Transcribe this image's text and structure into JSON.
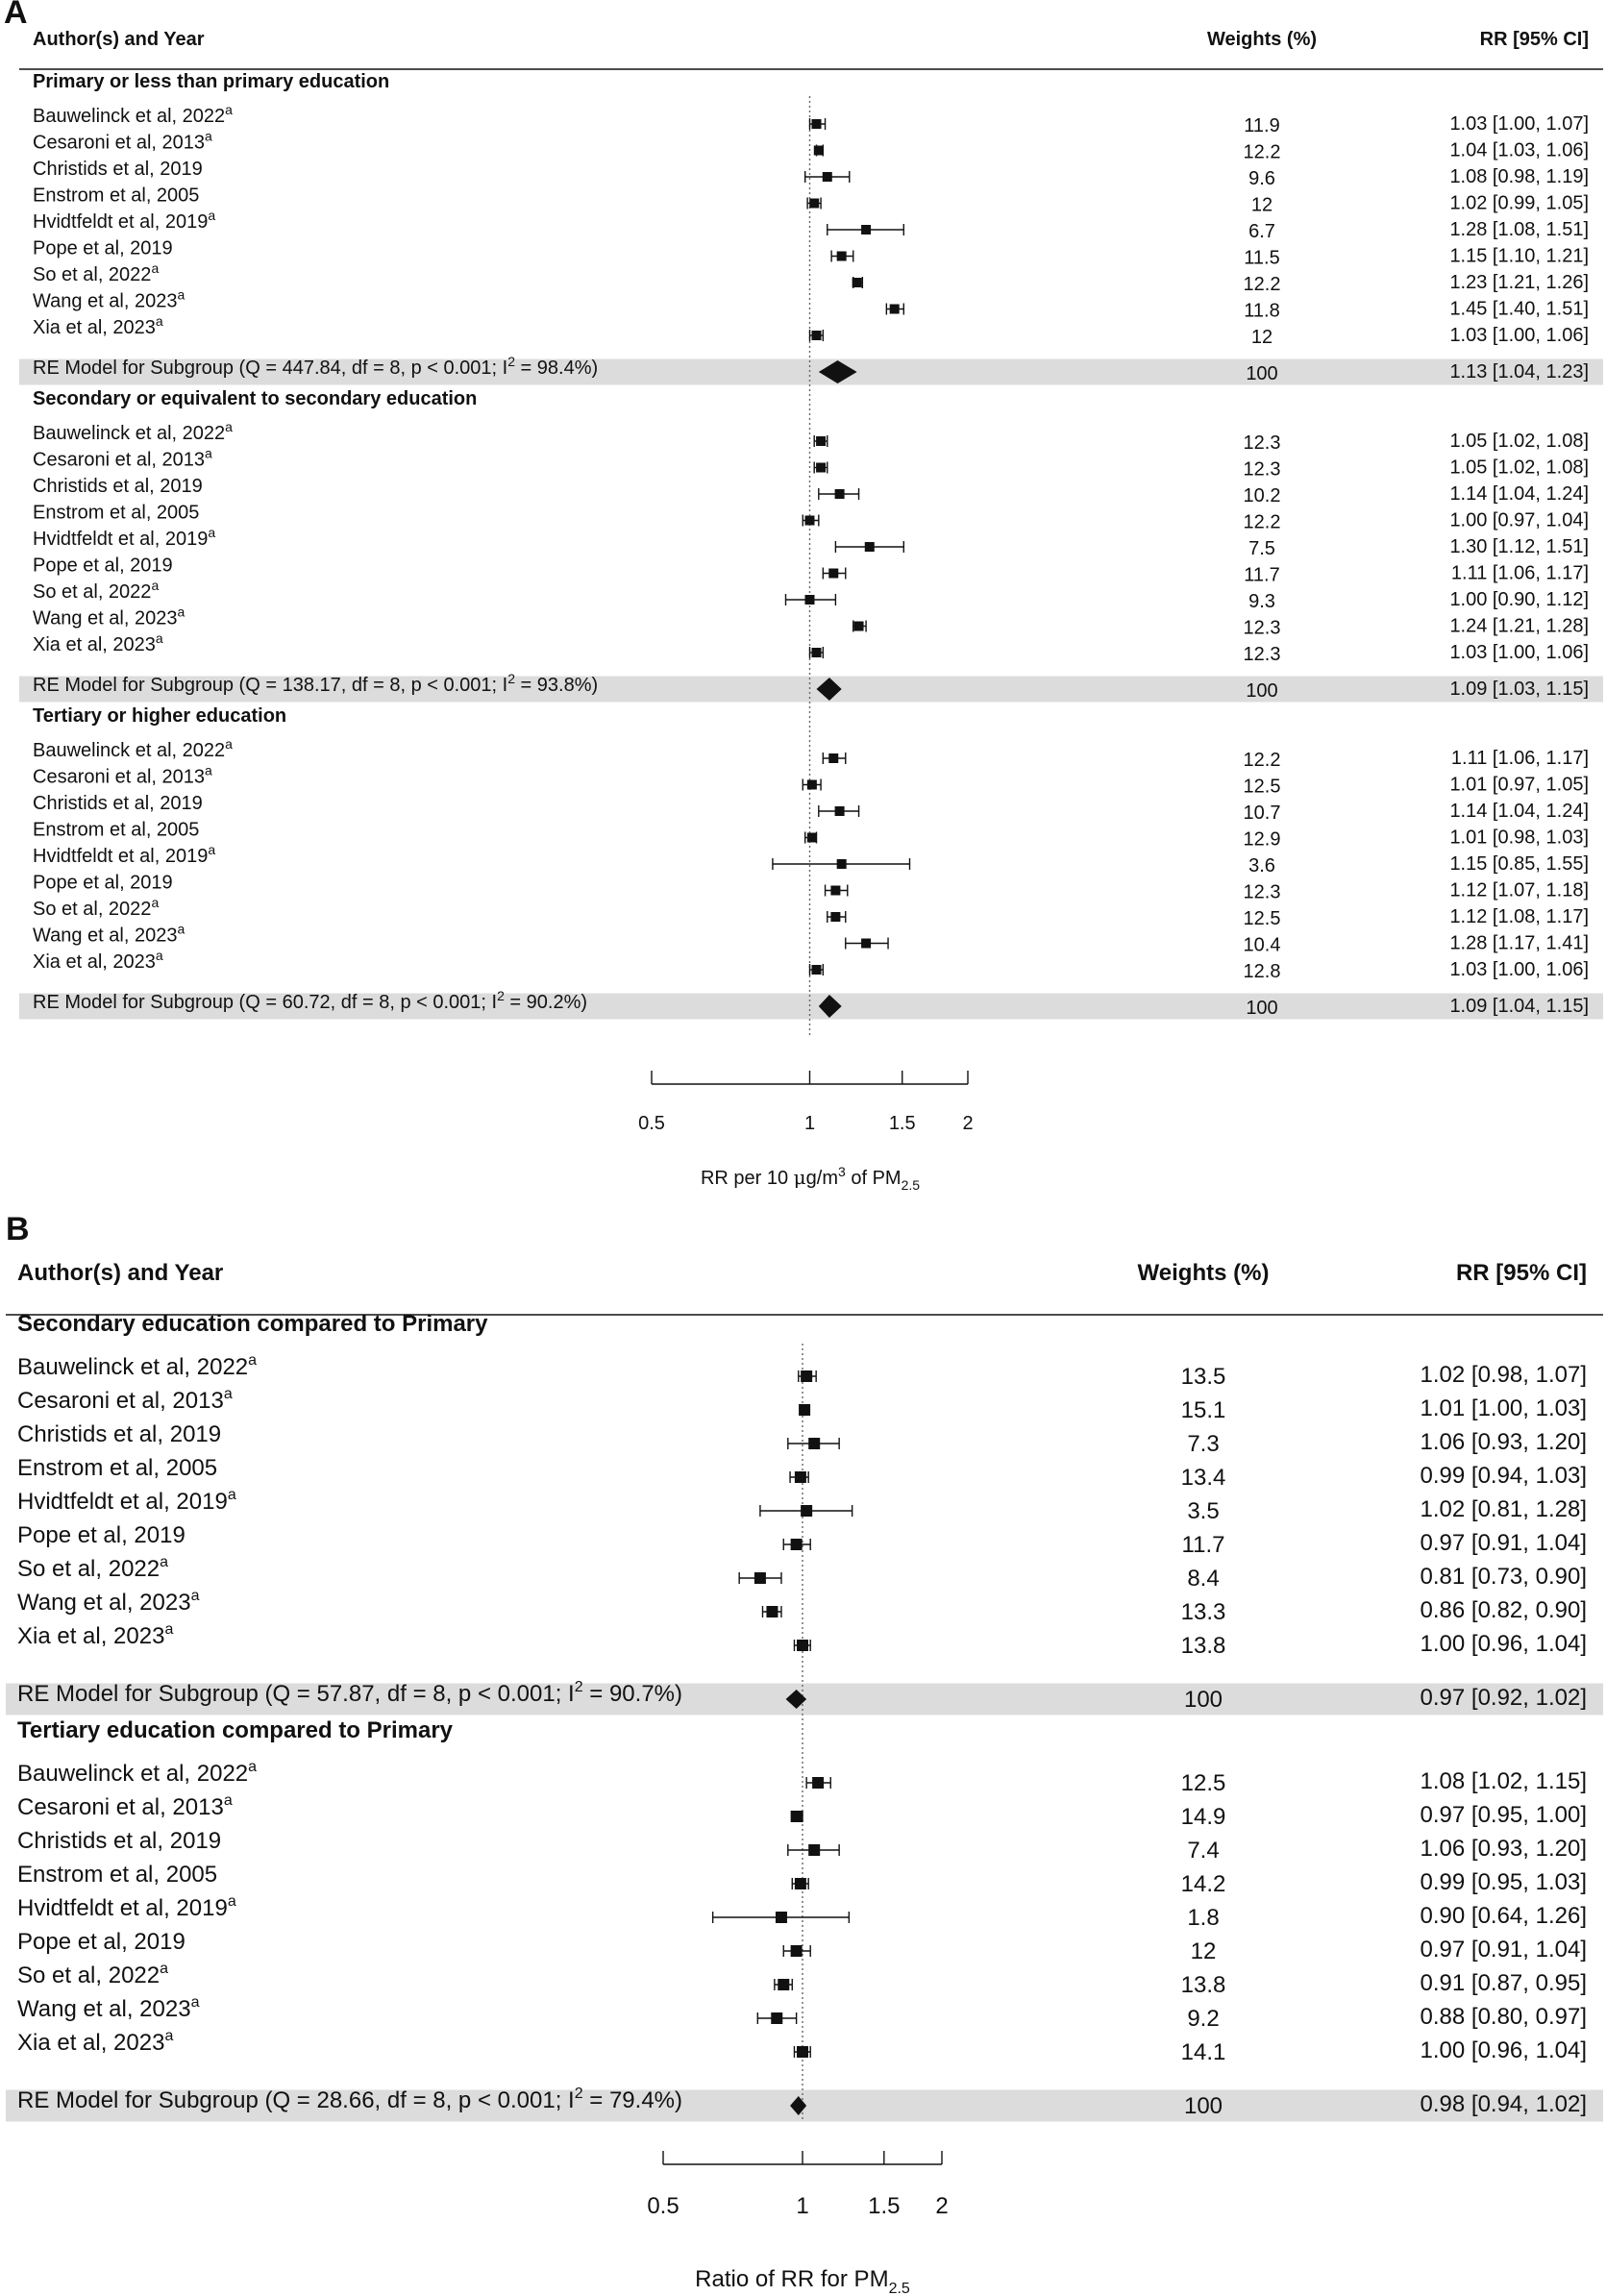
{
  "chart_data": [
    {
      "type": "forest",
      "panel_label": "A",
      "header": {
        "study": "Author(s) and Year",
        "weights": "Weights (%)",
        "ci": "RR [95% CI]"
      },
      "xlabel": {
        "prefix": "RR per 10 ",
        "mu": "μ",
        "mid": "g/m",
        "sup": "3",
        "of": " of PM",
        "sub": "2.5"
      },
      "xscale": "log",
      "xlim": [
        0.5,
        2
      ],
      "xticks": [
        0.5,
        1,
        1.5,
        2
      ],
      "xtick_labels": [
        "0.5",
        "1",
        "1.5",
        "2"
      ],
      "reference_line": 1,
      "subgroups": [
        {
          "title": "Primary or less than primary education",
          "studies": [
            {
              "name": "Bauwelinck et al, 2022",
              "sup": "a",
              "rr": 1.03,
              "lo": 1.0,
              "hi": 1.07,
              "weight": "11.9",
              "ci": "1.03 [1.00, 1.07]"
            },
            {
              "name": "Cesaroni et al, 2013",
              "sup": "a",
              "rr": 1.04,
              "lo": 1.03,
              "hi": 1.06,
              "weight": "12.2",
              "ci": "1.04 [1.03, 1.06]"
            },
            {
              "name": "Christids et al, 2019",
              "sup": "",
              "rr": 1.08,
              "lo": 0.98,
              "hi": 1.19,
              "weight": "9.6",
              "ci": "1.08 [0.98, 1.19]"
            },
            {
              "name": "Enstrom et al, 2005",
              "sup": "",
              "rr": 1.02,
              "lo": 0.99,
              "hi": 1.05,
              "weight": "12",
              "ci": "1.02 [0.99, 1.05]"
            },
            {
              "name": "Hvidtfeldt et al, 2019",
              "sup": "a",
              "rr": 1.28,
              "lo": 1.08,
              "hi": 1.51,
              "weight": "6.7",
              "ci": "1.28 [1.08, 1.51]"
            },
            {
              "name": "Pope et al, 2019",
              "sup": "",
              "rr": 1.15,
              "lo": 1.1,
              "hi": 1.21,
              "weight": "11.5",
              "ci": "1.15 [1.10, 1.21]"
            },
            {
              "name": "So et al, 2022",
              "sup": "a",
              "rr": 1.23,
              "lo": 1.21,
              "hi": 1.26,
              "weight": "12.2",
              "ci": "1.23 [1.21, 1.26]"
            },
            {
              "name": "Wang et al, 2023",
              "sup": "a",
              "rr": 1.45,
              "lo": 1.4,
              "hi": 1.51,
              "weight": "11.8",
              "ci": "1.45 [1.40, 1.51]"
            },
            {
              "name": "Xia et al, 2023",
              "sup": "a",
              "rr": 1.03,
              "lo": 1.0,
              "hi": 1.06,
              "weight": "12",
              "ci": "1.03 [1.00, 1.06]"
            }
          ],
          "model": {
            "pre": "RE Model for Subgroup (Q = 447.84, df = 8, p < 0.001; I",
            "post": " = 98.4%)",
            "rr": 1.13,
            "lo": 1.04,
            "hi": 1.23,
            "weight": "100",
            "ci": "1.13 [1.04, 1.23]"
          }
        },
        {
          "title": "Secondary or equivalent to secondary education",
          "studies": [
            {
              "name": "Bauwelinck et al, 2022",
              "sup": "a",
              "rr": 1.05,
              "lo": 1.02,
              "hi": 1.08,
              "weight": "12.3",
              "ci": "1.05 [1.02, 1.08]"
            },
            {
              "name": "Cesaroni et al, 2013",
              "sup": "a",
              "rr": 1.05,
              "lo": 1.02,
              "hi": 1.08,
              "weight": "12.3",
              "ci": "1.05 [1.02, 1.08]"
            },
            {
              "name": "Christids et al, 2019",
              "sup": "",
              "rr": 1.14,
              "lo": 1.04,
              "hi": 1.24,
              "weight": "10.2",
              "ci": "1.14 [1.04, 1.24]"
            },
            {
              "name": "Enstrom et al, 2005",
              "sup": "",
              "rr": 1.0,
              "lo": 0.97,
              "hi": 1.04,
              "weight": "12.2",
              "ci": "1.00 [0.97, 1.04]"
            },
            {
              "name": "Hvidtfeldt et al, 2019",
              "sup": "a",
              "rr": 1.3,
              "lo": 1.12,
              "hi": 1.51,
              "weight": "7.5",
              "ci": "1.30 [1.12, 1.51]"
            },
            {
              "name": "Pope et al, 2019",
              "sup": "",
              "rr": 1.11,
              "lo": 1.06,
              "hi": 1.17,
              "weight": "11.7",
              "ci": "1.11 [1.06, 1.17]"
            },
            {
              "name": "So et al, 2022",
              "sup": "a",
              "rr": 1.0,
              "lo": 0.9,
              "hi": 1.12,
              "weight": "9.3",
              "ci": "1.00 [0.90, 1.12]"
            },
            {
              "name": "Wang et al, 2023",
              "sup": "a",
              "rr": 1.24,
              "lo": 1.21,
              "hi": 1.28,
              "weight": "12.3",
              "ci": "1.24 [1.21, 1.28]"
            },
            {
              "name": "Xia et al, 2023",
              "sup": "a",
              "rr": 1.03,
              "lo": 1.0,
              "hi": 1.06,
              "weight": "12.3",
              "ci": "1.03 [1.00, 1.06]"
            }
          ],
          "model": {
            "pre": "RE Model for Subgroup (Q = 138.17, df = 8, p < 0.001; I",
            "post": " = 93.8%)",
            "rr": 1.09,
            "lo": 1.03,
            "hi": 1.15,
            "weight": "100",
            "ci": "1.09 [1.03, 1.15]"
          }
        },
        {
          "title": "Tertiary or higher education",
          "studies": [
            {
              "name": "Bauwelinck et al, 2022",
              "sup": "a",
              "rr": 1.11,
              "lo": 1.06,
              "hi": 1.17,
              "weight": "12.2",
              "ci": "1.11 [1.06, 1.17]"
            },
            {
              "name": "Cesaroni et al, 2013",
              "sup": "a",
              "rr": 1.01,
              "lo": 0.97,
              "hi": 1.05,
              "weight": "12.5",
              "ci": "1.01 [0.97, 1.05]"
            },
            {
              "name": "Christids et al, 2019",
              "sup": "",
              "rr": 1.14,
              "lo": 1.04,
              "hi": 1.24,
              "weight": "10.7",
              "ci": "1.14 [1.04, 1.24]"
            },
            {
              "name": "Enstrom et al, 2005",
              "sup": "",
              "rr": 1.01,
              "lo": 0.98,
              "hi": 1.03,
              "weight": "12.9",
              "ci": "1.01 [0.98, 1.03]"
            },
            {
              "name": "Hvidtfeldt et al, 2019",
              "sup": "a",
              "rr": 1.15,
              "lo": 0.85,
              "hi": 1.55,
              "weight": "3.6",
              "ci": "1.15 [0.85, 1.55]"
            },
            {
              "name": "Pope et al, 2019",
              "sup": "",
              "rr": 1.12,
              "lo": 1.07,
              "hi": 1.18,
              "weight": "12.3",
              "ci": "1.12 [1.07, 1.18]"
            },
            {
              "name": "So et al, 2022",
              "sup": "a",
              "rr": 1.12,
              "lo": 1.08,
              "hi": 1.17,
              "weight": "12.5",
              "ci": "1.12 [1.08, 1.17]"
            },
            {
              "name": "Wang et al, 2023",
              "sup": "a",
              "rr": 1.28,
              "lo": 1.17,
              "hi": 1.41,
              "weight": "10.4",
              "ci": "1.28 [1.17, 1.41]"
            },
            {
              "name": "Xia et al, 2023",
              "sup": "a",
              "rr": 1.03,
              "lo": 1.0,
              "hi": 1.06,
              "weight": "12.8",
              "ci": "1.03 [1.00, 1.06]"
            }
          ],
          "model": {
            "pre": "RE Model for Subgroup (Q = 60.72, df = 8, p < 0.001; I",
            "post": " = 90.2%)",
            "rr": 1.09,
            "lo": 1.04,
            "hi": 1.15,
            "weight": "100",
            "ci": "1.09 [1.04, 1.15]"
          }
        }
      ]
    },
    {
      "type": "forest",
      "panel_label": "B",
      "header": {
        "study": "Author(s) and Year",
        "weights": "Weights (%)",
        "ci": "RR [95% CI]"
      },
      "xlabel": {
        "prefix": "Ratio of RR for PM",
        "sub": "2.5"
      },
      "xscale": "log",
      "xlim": [
        0.5,
        2
      ],
      "xticks": [
        0.5,
        1,
        1.5,
        2
      ],
      "xtick_labels": [
        "0.5",
        "1",
        "1.5",
        "2"
      ],
      "reference_line": 1,
      "subgroups": [
        {
          "title": "Secondary education compared to Primary",
          "studies": [
            {
              "name": "Bauwelinck et al, 2022",
              "sup": "a",
              "rr": 1.02,
              "lo": 0.98,
              "hi": 1.07,
              "weight": "13.5",
              "ci": "1.02 [0.98, 1.07]"
            },
            {
              "name": "Cesaroni et al, 2013",
              "sup": "a",
              "rr": 1.01,
              "lo": 1.0,
              "hi": 1.03,
              "weight": "15.1",
              "ci": "1.01 [1.00, 1.03]"
            },
            {
              "name": "Christids et al, 2019",
              "sup": "",
              "rr": 1.06,
              "lo": 0.93,
              "hi": 1.2,
              "weight": "7.3",
              "ci": "1.06 [0.93, 1.20]"
            },
            {
              "name": "Enstrom et al, 2005",
              "sup": "",
              "rr": 0.99,
              "lo": 0.94,
              "hi": 1.03,
              "weight": "13.4",
              "ci": "0.99 [0.94, 1.03]"
            },
            {
              "name": "Hvidtfeldt et al, 2019",
              "sup": "a",
              "rr": 1.02,
              "lo": 0.81,
              "hi": 1.28,
              "weight": "3.5",
              "ci": "1.02 [0.81, 1.28]"
            },
            {
              "name": "Pope et al, 2019",
              "sup": "",
              "rr": 0.97,
              "lo": 0.91,
              "hi": 1.04,
              "weight": "11.7",
              "ci": "0.97 [0.91, 1.04]"
            },
            {
              "name": "So et al, 2022",
              "sup": "a",
              "rr": 0.81,
              "lo": 0.73,
              "hi": 0.9,
              "weight": "8.4",
              "ci": "0.81 [0.73, 0.90]"
            },
            {
              "name": "Wang et al, 2023",
              "sup": "a",
              "rr": 0.86,
              "lo": 0.82,
              "hi": 0.9,
              "weight": "13.3",
              "ci": "0.86 [0.82, 0.90]"
            },
            {
              "name": "Xia et al, 2023",
              "sup": "a",
              "rr": 1.0,
              "lo": 0.96,
              "hi": 1.04,
              "weight": "13.8",
              "ci": "1.00 [0.96, 1.04]"
            }
          ],
          "model": {
            "pre": "RE Model for Subgroup (Q = 57.87, df = 8, p < 0.001; I",
            "post": " = 90.7%)",
            "rr": 0.97,
            "lo": 0.92,
            "hi": 1.02,
            "weight": "100",
            "ci": "0.97 [0.92, 1.02]"
          }
        },
        {
          "title": "Tertiary education compared to Primary",
          "studies": [
            {
              "name": "Bauwelinck et al, 2022",
              "sup": "a",
              "rr": 1.08,
              "lo": 1.02,
              "hi": 1.15,
              "weight": "12.5",
              "ci": "1.08 [1.02, 1.15]"
            },
            {
              "name": "Cesaroni et al, 2013",
              "sup": "a",
              "rr": 0.97,
              "lo": 0.95,
              "hi": 1.0,
              "weight": "14.9",
              "ci": "0.97 [0.95, 1.00]"
            },
            {
              "name": "Christids et al, 2019",
              "sup": "",
              "rr": 1.06,
              "lo": 0.93,
              "hi": 1.2,
              "weight": "7.4",
              "ci": "1.06 [0.93, 1.20]"
            },
            {
              "name": "Enstrom et al, 2005",
              "sup": "",
              "rr": 0.99,
              "lo": 0.95,
              "hi": 1.03,
              "weight": "14.2",
              "ci": "0.99 [0.95, 1.03]"
            },
            {
              "name": "Hvidtfeldt et al, 2019",
              "sup": "a",
              "rr": 0.9,
              "lo": 0.64,
              "hi": 1.26,
              "weight": "1.8",
              "ci": "0.90 [0.64, 1.26]"
            },
            {
              "name": "Pope et al, 2019",
              "sup": "",
              "rr": 0.97,
              "lo": 0.91,
              "hi": 1.04,
              "weight": "12",
              "ci": "0.97 [0.91, 1.04]"
            },
            {
              "name": "So et al, 2022",
              "sup": "a",
              "rr": 0.91,
              "lo": 0.87,
              "hi": 0.95,
              "weight": "13.8",
              "ci": "0.91 [0.87, 0.95]"
            },
            {
              "name": "Wang et al, 2023",
              "sup": "a",
              "rr": 0.88,
              "lo": 0.8,
              "hi": 0.97,
              "weight": "9.2",
              "ci": "0.88 [0.80, 0.97]"
            },
            {
              "name": "Xia et al, 2023",
              "sup": "a",
              "rr": 1.0,
              "lo": 0.96,
              "hi": 1.04,
              "weight": "14.1",
              "ci": "1.00 [0.96, 1.04]"
            }
          ],
          "model": {
            "pre": "RE Model for Subgroup (Q = 28.66, df = 8, p < 0.001; I",
            "post": " = 79.4%)",
            "rr": 0.98,
            "lo": 0.94,
            "hi": 1.02,
            "weight": "100",
            "ci": "0.98 [0.94, 1.02]"
          }
        }
      ]
    }
  ],
  "colors": {
    "shade": "#dcdcdc",
    "ink": "#111111",
    "ref_line": "#666666"
  }
}
